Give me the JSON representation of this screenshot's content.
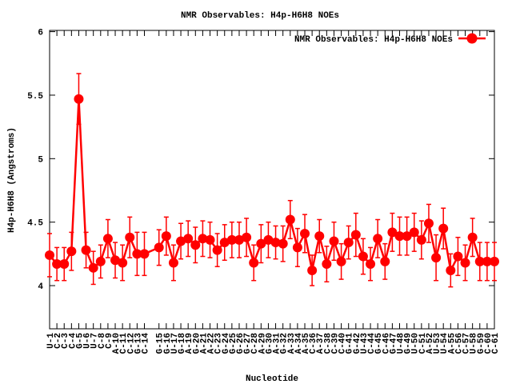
{
  "chart_data": {
    "type": "line",
    "title": "NMR Observables: H4p-H6H8 NOEs",
    "xlabel": "Nucleotide",
    "ylabel": "H4p-H6H8 (Angstroms)",
    "ylim": [
      3.66,
      6.01
    ],
    "yticks": [
      "4",
      "4.5",
      "5",
      "5.5",
      "6"
    ],
    "ytick_values": [
      4,
      4.5,
      5,
      5.5,
      6
    ],
    "grid": false,
    "legend": {
      "position": "top-right",
      "entries": [
        "NMR Observables: H4p-H6H8 NOEs"
      ]
    },
    "series_color": "#ff0000",
    "categories": [
      "U-1",
      "C-2",
      "C-3",
      "C-4",
      "G-5",
      "U-6",
      "U-7",
      "C-8",
      "C-9",
      "A-10",
      "C-11",
      "C-12",
      "G-13",
      "C-14",
      "G-15",
      "G-16",
      "U-17",
      "G-18",
      "A-19",
      "G-20",
      "A-21",
      "A-22",
      "C-23",
      "G-24",
      "G-25",
      "G-26",
      "G-27",
      "C-28",
      "A-29",
      "G-30",
      "A-31",
      "G-32",
      "A-33",
      "A-34",
      "A-35",
      "C-36",
      "A-37",
      "C-38",
      "C-39",
      "C-40",
      "G-41",
      "G-42",
      "U-43",
      "C-44",
      "G-45",
      "C-46",
      "G-47",
      "U-48",
      "G-49",
      "U-50",
      "C-51",
      "A-52",
      "U-53",
      "U-54",
      "A-55",
      "C-56",
      "C-57",
      "U-58",
      "G-59",
      "C-60",
      "C-61"
    ],
    "gap_after_index": 13,
    "series": [
      {
        "name": "NMR Observables: H4p-H6H8 NOEs",
        "values": [
          4.24,
          4.17,
          4.17,
          4.27,
          5.47,
          4.28,
          4.14,
          4.19,
          4.37,
          4.2,
          4.18,
          4.38,
          4.25,
          4.25,
          4.3,
          4.39,
          4.18,
          4.35,
          4.37,
          4.32,
          4.37,
          4.36,
          4.28,
          4.34,
          4.36,
          4.36,
          4.38,
          4.18,
          4.33,
          4.36,
          4.34,
          4.33,
          4.52,
          4.3,
          4.41,
          4.12,
          4.39,
          4.17,
          4.35,
          4.19,
          4.34,
          4.4,
          4.23,
          4.17,
          4.37,
          4.19,
          4.42,
          4.39,
          4.39,
          4.42,
          4.36,
          4.49,
          4.22,
          4.45,
          4.12,
          4.23,
          4.18,
          4.38,
          4.19,
          4.19,
          4.19
        ],
        "errors": [
          0.17,
          0.13,
          0.13,
          0.15,
          0.2,
          0.14,
          0.13,
          0.13,
          0.15,
          0.14,
          0.14,
          0.16,
          0.17,
          0.17,
          0.14,
          0.15,
          0.14,
          0.14,
          0.14,
          0.14,
          0.14,
          0.14,
          0.13,
          0.14,
          0.14,
          0.14,
          0.15,
          0.14,
          0.15,
          0.14,
          0.13,
          0.14,
          0.15,
          0.15,
          0.15,
          0.12,
          0.13,
          0.14,
          0.15,
          0.14,
          0.13,
          0.17,
          0.14,
          0.13,
          0.15,
          0.14,
          0.15,
          0.15,
          0.15,
          0.15,
          0.15,
          0.15,
          0.18,
          0.16,
          0.13,
          0.15,
          0.14,
          0.15,
          0.15,
          0.15,
          0.15
        ]
      }
    ]
  }
}
